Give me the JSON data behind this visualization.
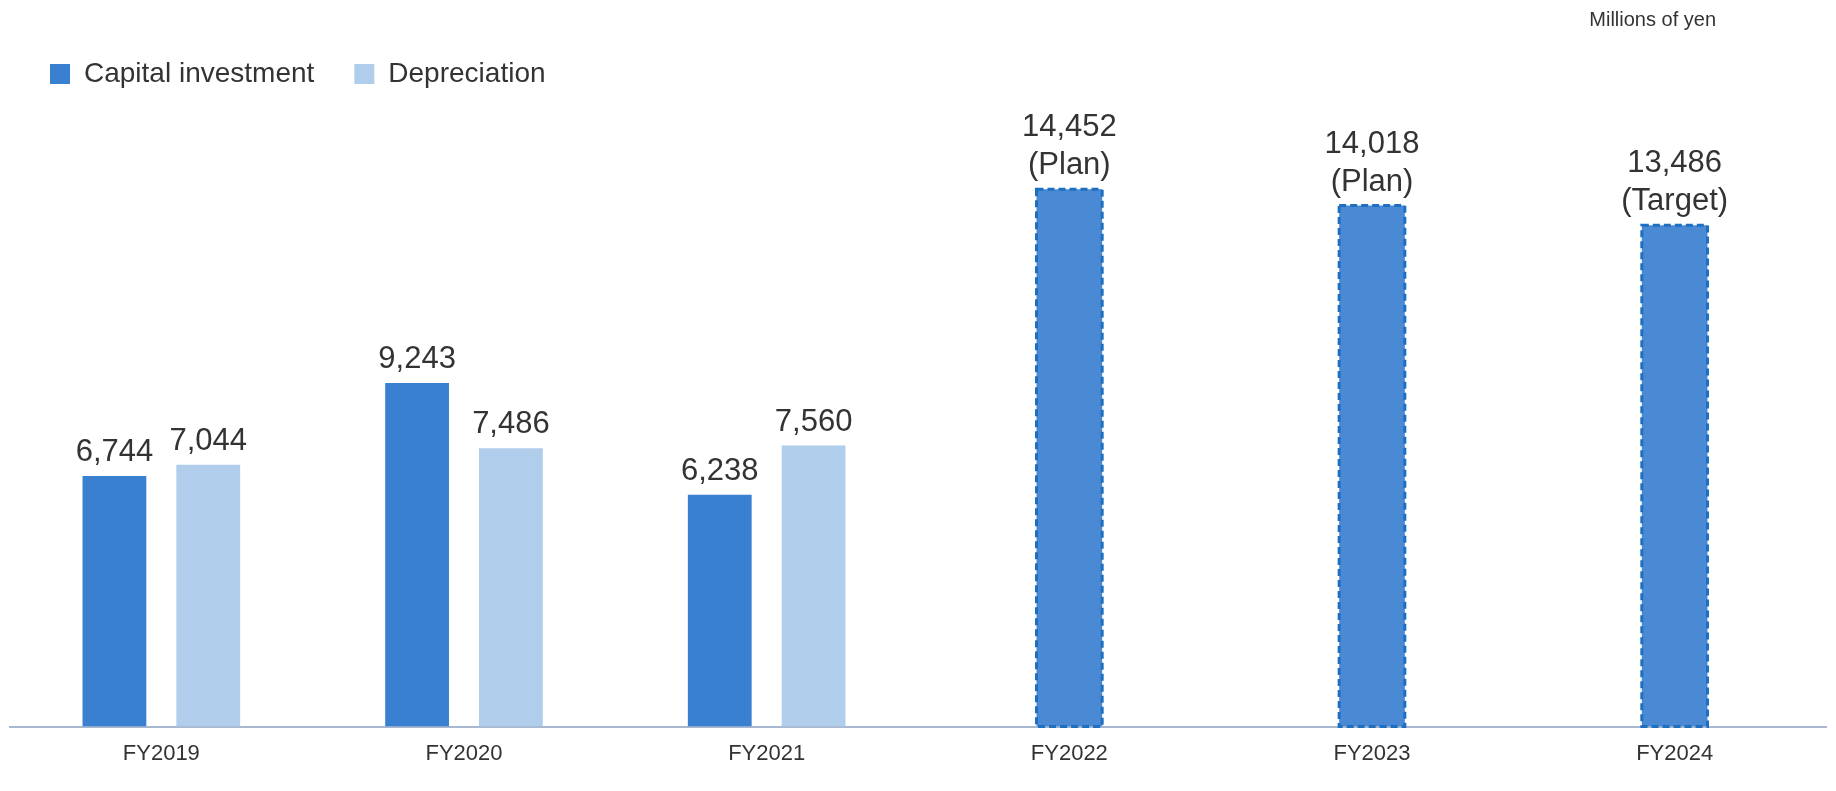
{
  "chart_data": {
    "type": "bar",
    "categories": [
      "FY2019",
      "FY2020",
      "FY2021",
      "FY2022",
      "FY2023",
      "FY2024"
    ],
    "series": [
      {
        "name": "Capital investment",
        "color": "#3a80d0",
        "values": [
          6744,
          9243,
          6238,
          null,
          null,
          null
        ],
        "value_labels": [
          "6,744",
          "9,243",
          "6,238",
          null,
          null,
          null
        ]
      },
      {
        "name": "Depreciation",
        "color": "#b0cdec",
        "values": [
          7044,
          7486,
          7560,
          null,
          null,
          null
        ],
        "value_labels": [
          "7,044",
          "7,486",
          "7,560",
          null,
          null,
          null
        ]
      },
      {
        "color": "#4a8ad4",
        "line_style": "dashed",
        "values": [
          null,
          null,
          null,
          14452,
          14018,
          13486
        ],
        "value_labels": [
          null,
          null,
          null,
          "14,452 (Plan)",
          "14,018 (Plan)",
          "13,486 (Target)"
        ]
      }
    ],
    "annotations": [
      "Millions of yen"
    ],
    "legend": "top left",
    "tick_labels": "x"
  }
}
